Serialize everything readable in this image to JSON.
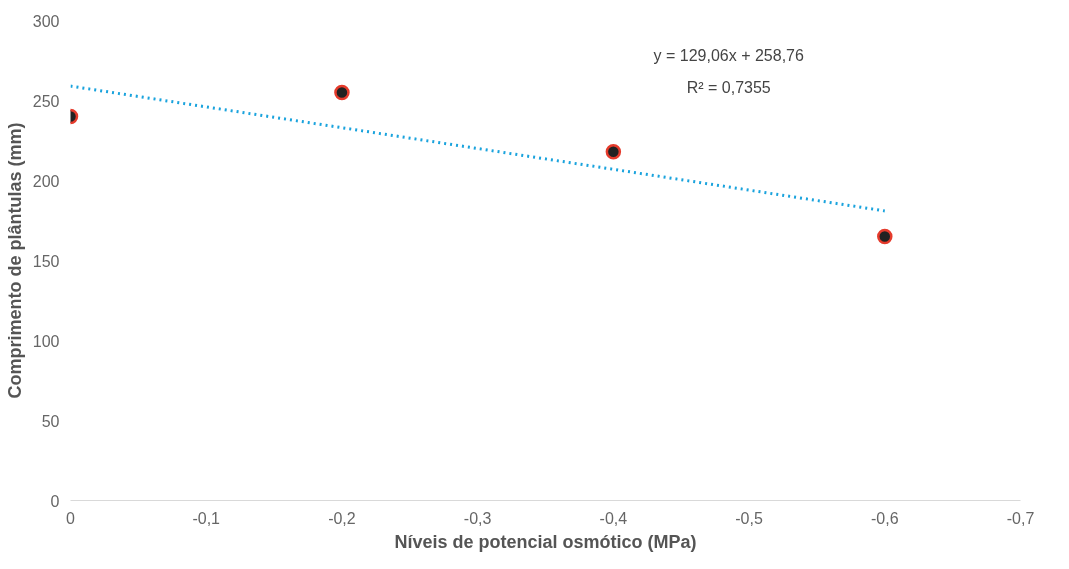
{
  "chart_data": {
    "type": "scatter",
    "xlabel": "Níveis de potencial osmótico (MPa)",
    "ylabel": "Comprimento de plântulas (mm)",
    "x": [
      0,
      -0.2,
      -0.4,
      -0.6
    ],
    "series": [
      {
        "color": "#222222",
        "marker": "circle",
        "values": [
          240,
          255,
          218,
          165
        ]
      },
      {
        "type": "line",
        "color": "#1aa3dd",
        "line_style": "dotted",
        "x": [
          0,
          -0.6
        ],
        "values": [
          259,
          181
        ]
      }
    ],
    "xlim": [
      0,
      -0.7
    ],
    "ylim": [
      0,
      300
    ],
    "xticks": [
      0,
      {
        "value": -0.1,
        "label": "-0,1"
      },
      {
        "value": -0.2,
        "label": "-0,2"
      },
      {
        "value": -0.3,
        "label": "-0,3"
      },
      {
        "value": -0.4,
        "label": "-0,4"
      },
      {
        "value": -0.5,
        "label": "-0,5"
      },
      {
        "value": -0.6,
        "label": "-0,6"
      },
      {
        "value": -0.7,
        "label": "-0,7"
      }
    ],
    "yticks": [
      0,
      50,
      100,
      150,
      200,
      250,
      300
    ],
    "annotations": [
      "y = 129,06x + 258,76",
      "R² = 0,7355"
    ],
    "grid": false
  }
}
